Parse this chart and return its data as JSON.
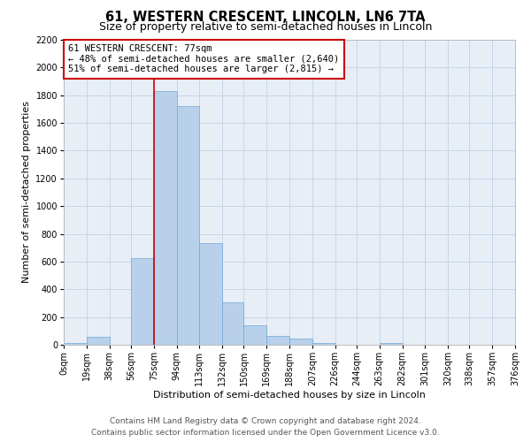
{
  "title": "61, WESTERN CRESCENT, LINCOLN, LN6 7TA",
  "subtitle": "Size of property relative to semi-detached houses in Lincoln",
  "xlabel": "Distribution of semi-detached houses by size in Lincoln",
  "ylabel": "Number of semi-detached properties",
  "bar_values": [
    10,
    55,
    0,
    625,
    1830,
    1720,
    735,
    305,
    140,
    65,
    45,
    15,
    0,
    0,
    15,
    0,
    0,
    0,
    0,
    0
  ],
  "bin_edges": [
    0,
    19,
    38,
    56,
    75,
    94,
    113,
    132,
    150,
    169,
    188,
    207,
    226,
    244,
    263,
    282,
    301,
    320,
    338,
    357,
    376
  ],
  "tick_labels": [
    "0sqm",
    "19sqm",
    "38sqm",
    "56sqm",
    "75sqm",
    "94sqm",
    "113sqm",
    "132sqm",
    "150sqm",
    "169sqm",
    "188sqm",
    "207sqm",
    "226sqm",
    "244sqm",
    "263sqm",
    "282sqm",
    "301sqm",
    "320sqm",
    "338sqm",
    "357sqm",
    "376sqm"
  ],
  "bar_color": "#b8d0ea",
  "bar_edge_color": "#6fa8d4",
  "bar_edge_width": 0.5,
  "grid_color": "#c8d4e8",
  "bg_color": "#e8eef6",
  "property_line_x": 75,
  "annotation_line1": "61 WESTERN CRESCENT: 77sqm",
  "annotation_line2": "← 48% of semi-detached houses are smaller (2,640)",
  "annotation_line3": "51% of semi-detached houses are larger (2,815) →",
  "ylim_max": 2200,
  "yticks": [
    0,
    200,
    400,
    600,
    800,
    1000,
    1200,
    1400,
    1600,
    1800,
    2000,
    2200
  ],
  "footer_line1": "Contains HM Land Registry data © Crown copyright and database right 2024.",
  "footer_line2": "Contains public sector information licensed under the Open Government Licence v3.0.",
  "red_line_color": "#cc0000",
  "annotation_box_edge_color": "#cc0000",
  "title_fontsize": 10.5,
  "subtitle_fontsize": 9,
  "axis_label_fontsize": 8,
  "tick_fontsize": 7,
  "annotation_fontsize": 7.5,
  "footer_fontsize": 6.5
}
